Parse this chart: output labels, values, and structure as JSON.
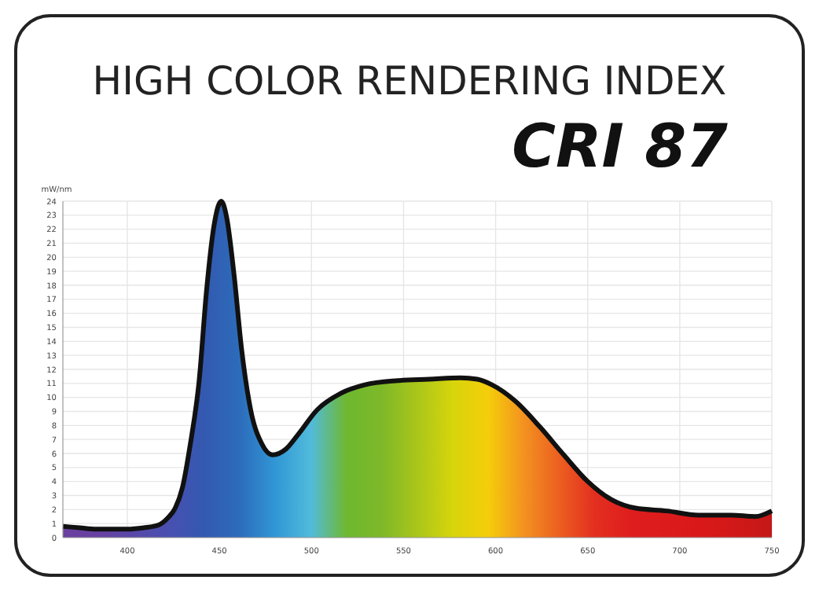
{
  "chart_data": {
    "type": "area",
    "title": "HIGH COLOR RENDERING INDEX",
    "subtitle": "CRI 87",
    "ylabel": "mW/nm",
    "x": [
      365,
      374,
      383,
      391,
      400,
      409,
      417,
      422,
      426,
      430,
      434,
      439,
      443,
      447,
      451,
      454,
      458,
      462,
      467,
      473,
      479,
      486,
      493,
      503,
      516,
      529,
      547,
      564,
      581,
      590,
      598,
      611,
      624,
      637,
      650,
      663,
      676,
      693,
      710,
      728,
      741,
      750
    ],
    "series": [
      {
        "color": "#111111",
        "values": [
          0.8,
          0.7,
          0.6,
          0.6,
          0.6,
          0.7,
          0.9,
          1.4,
          2.1,
          3.6,
          6.5,
          11.2,
          17.6,
          22.2,
          24,
          22.8,
          18.7,
          13.5,
          9.1,
          6.7,
          5.9,
          6.3,
          7.4,
          9.1,
          10.3,
          10.9,
          11.2,
          11.3,
          11.4,
          11.3,
          10.9,
          9.7,
          7.9,
          5.9,
          4.0,
          2.7,
          2.1,
          1.9,
          1.6,
          1.6,
          1.5,
          1.9
        ]
      }
    ],
    "xlim": [
      365,
      750
    ],
    "xticks": [
      400,
      450,
      500,
      550,
      600,
      650,
      700,
      750
    ],
    "ylim": [
      0,
      24
    ],
    "yticks": [
      0,
      1,
      2,
      3,
      4,
      5,
      6,
      7,
      8,
      9,
      10,
      11,
      12,
      13,
      14,
      15,
      16,
      17,
      18,
      19,
      20,
      21,
      22,
      23,
      24
    ],
    "grid": true
  }
}
